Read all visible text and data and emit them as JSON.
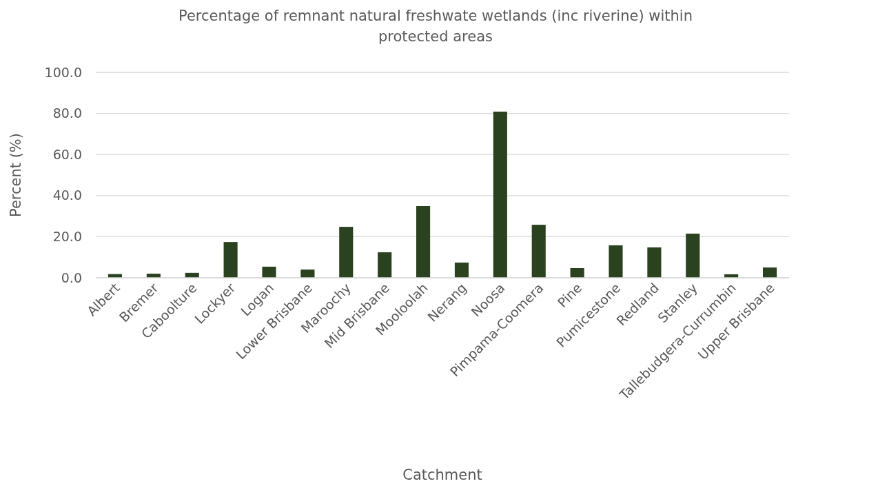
{
  "chart_data": {
    "type": "bar",
    "title": "Percentage of remnant natural freshwate wetlands (inc riverine) within protected areas",
    "xlabel": "Catchment",
    "ylabel": "Percent (%)",
    "categories": [
      "Albert",
      "Bremer",
      "Caboolture",
      "Lockyer",
      "Logan",
      "Lower Brisbane",
      "Maroochy",
      "Mid Brisbane",
      "Mooloolah",
      "Nerang",
      "Noosa",
      "Pimpama-Coomera",
      "Pine",
      "Pumicestone",
      "Redland",
      "Stanley",
      "Tallebudgera-Currumbin",
      "Upper Brisbane"
    ],
    "values": [
      1.8,
      2.0,
      2.4,
      17.4,
      5.4,
      4.0,
      24.8,
      12.4,
      34.9,
      7.4,
      80.9,
      25.8,
      4.7,
      15.8,
      14.8,
      21.5,
      1.7,
      5.0
    ],
    "color": "#2a4220",
    "ylim": [
      0,
      100
    ],
    "yticks": [
      {
        "value": 0,
        "label": "0.0"
      },
      {
        "value": 20,
        "label": "20.0"
      },
      {
        "value": 40,
        "label": "40.0"
      },
      {
        "value": 60,
        "label": "60.0"
      },
      {
        "value": 80,
        "label": "80.0"
      },
      {
        "value": 100,
        "label": "100.0"
      }
    ],
    "grid": "y"
  }
}
